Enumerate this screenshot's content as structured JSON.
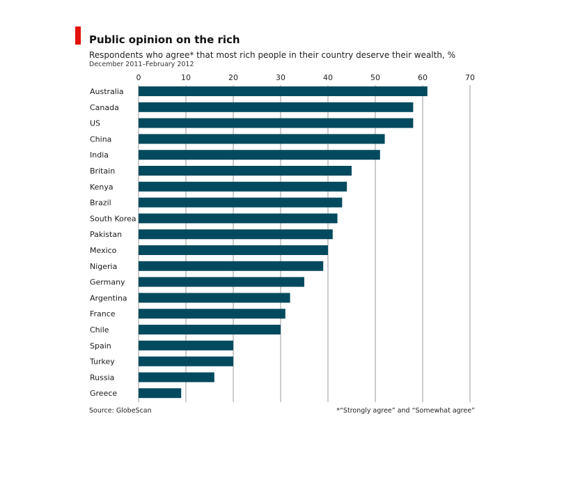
{
  "header": {
    "title": "Public opinion on the rich",
    "subtitle": "Respondents who agree* that most rich people in their country deserve their wealth, %",
    "date_range": "December 2011–February 2012"
  },
  "footer": {
    "source": "Source: GlobeScan",
    "footnote": "*“Strongly agree” and “Somewhat agree”"
  },
  "colors": {
    "bar": "#034a5e",
    "accent": "#e3120b",
    "grid": "#9a9a9a"
  },
  "chart_data": {
    "type": "bar",
    "orientation": "horizontal",
    "title": "Public opinion on the rich",
    "xlim": [
      0,
      70
    ],
    "x_ticks": [
      0,
      10,
      20,
      30,
      40,
      50,
      60,
      70
    ],
    "axis_position": "top",
    "grid": true,
    "categories": [
      "Australia",
      "Canada",
      "US",
      "China",
      "India",
      "Britain",
      "Kenya",
      "Brazil",
      "South Korea",
      "Pakistan",
      "Mexico",
      "Nigeria",
      "Germany",
      "Argentina",
      "France",
      "Chile",
      "Spain",
      "Turkey",
      "Russia",
      "Greece"
    ],
    "values": [
      61,
      58,
      58,
      52,
      51,
      45,
      44,
      43,
      42,
      41,
      40,
      39,
      35,
      32,
      31,
      30,
      20,
      20,
      16,
      9
    ]
  }
}
